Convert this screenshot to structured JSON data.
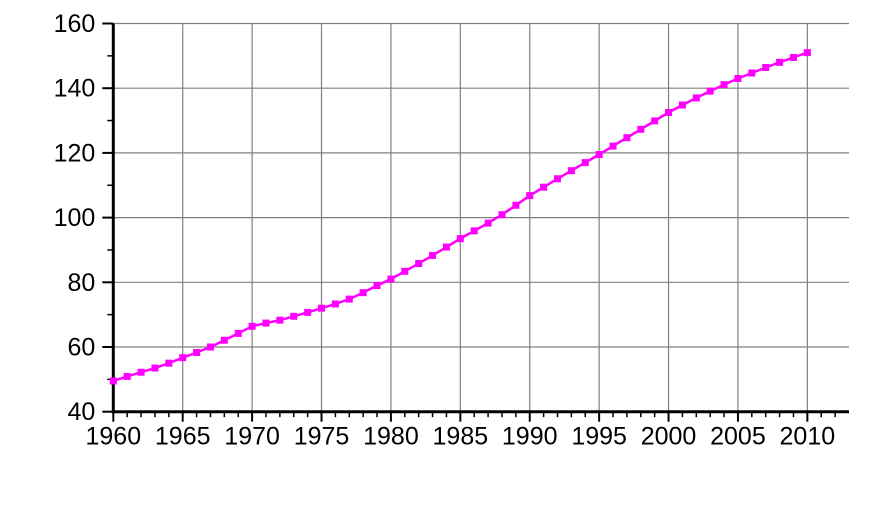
{
  "page": {
    "background": "#ffffff",
    "title": ""
  },
  "chart_data": {
    "type": "line",
    "title": "",
    "subtitle": "",
    "xlabel": "",
    "ylabel": "",
    "legend": "none",
    "grid": true,
    "grid_color": "#808080",
    "axis_color": "#000000",
    "plot_background": "#ffffff",
    "xlim": [
      1960,
      2013
    ],
    "ylim": [
      40,
      160
    ],
    "x_major_ticks": [
      1960,
      1965,
      1970,
      1975,
      1980,
      1985,
      1990,
      1995,
      2000,
      2005,
      2010
    ],
    "x_tick_labels": [
      "1960",
      "1965",
      "1970",
      "1975",
      "1980",
      "1985",
      "1990",
      "1995",
      "2000",
      "2005",
      "2010"
    ],
    "x_minor_tick_step": 1,
    "y_major_ticks": [
      40,
      60,
      80,
      100,
      120,
      140,
      160
    ],
    "y_tick_labels": [
      "40",
      "60",
      "80",
      "100",
      "120",
      "140",
      "160"
    ],
    "y_minor_tick_step": 10,
    "x": [
      1960,
      1961,
      1962,
      1963,
      1964,
      1965,
      1966,
      1967,
      1968,
      1969,
      1970,
      1971,
      1972,
      1973,
      1974,
      1975,
      1976,
      1977,
      1978,
      1979,
      1980,
      1981,
      1982,
      1983,
      1984,
      1985,
      1986,
      1987,
      1988,
      1989,
      1990,
      1991,
      1992,
      1993,
      1994,
      1995,
      1996,
      1997,
      1998,
      1999,
      2000,
      2001,
      2002,
      2003,
      2004,
      2005,
      2006,
      2007,
      2008,
      2009,
      2010
    ],
    "series": [
      {
        "name": "series-1",
        "color": "#ff00ff",
        "marker": "square",
        "values": [
          49.5,
          50.9,
          52.2,
          53.5,
          55.0,
          56.7,
          58.3,
          60.0,
          62.1,
          64.2,
          66.4,
          67.4,
          68.3,
          69.5,
          70.7,
          72.0,
          73.3,
          74.8,
          76.8,
          79.0,
          81.0,
          83.4,
          85.8,
          88.3,
          90.9,
          93.5,
          95.9,
          98.3,
          100.9,
          103.8,
          106.8,
          109.4,
          112.0,
          114.5,
          117.0,
          119.5,
          122.1,
          124.7,
          127.3,
          129.9,
          132.5,
          134.8,
          137.0,
          139.1,
          141.1,
          143.0,
          144.7,
          146.4,
          148.0,
          149.5,
          151.0
        ]
      }
    ]
  }
}
